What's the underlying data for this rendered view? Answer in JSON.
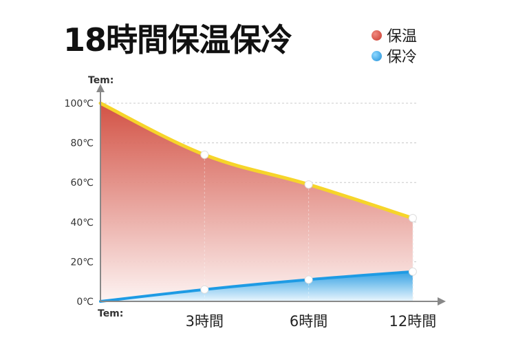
{
  "title": "18時間保温保冷",
  "colors": {
    "hot_fill_top": "#d0493b",
    "hot_fill_bottom": "#fdf3f2",
    "hot_line": "#f6d52a",
    "cold_fill_top": "#1e9be4",
    "cold_fill_bottom": "#e8f6ff",
    "grid": "#c8c8c8",
    "axis": "#888888"
  },
  "chart_data": {
    "type": "area",
    "x_axis_label": "Tem:",
    "y_axis_label": "Tem:",
    "x_tick_labels": [
      "3時間",
      "6時間",
      "12時間"
    ],
    "x_tick_values": [
      1,
      2,
      3
    ],
    "xlim": [
      0,
      3.3
    ],
    "y_tick_labels": [
      "100℃",
      "80℃",
      "60℃",
      "40℃",
      "20℃",
      "0℃"
    ],
    "y_tick_values": [
      100,
      80,
      60,
      40,
      20,
      0
    ],
    "ylim": [
      0,
      105
    ],
    "grid": true,
    "legend": "top-right",
    "series": [
      {
        "name": "保温",
        "color": "#d0493b",
        "x": [
          0,
          1,
          2,
          3
        ],
        "values": [
          100,
          74,
          59,
          42
        ],
        "markers": [
          1,
          2,
          3
        ]
      },
      {
        "name": "保冷",
        "color": "#1e9be4",
        "x": [
          0,
          1,
          2,
          3
        ],
        "values": [
          0,
          6,
          11,
          15
        ],
        "markers": [
          1,
          2,
          3
        ]
      }
    ]
  }
}
